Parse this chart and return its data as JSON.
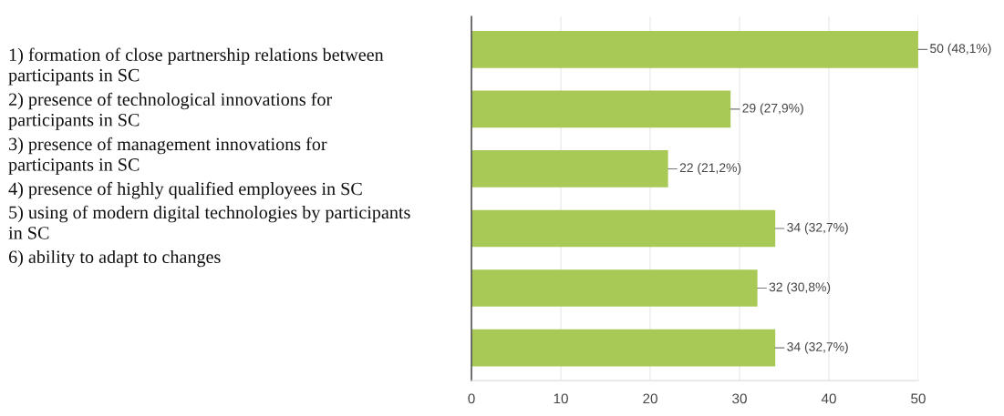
{
  "chart_data": {
    "type": "bar",
    "orientation": "horizontal",
    "categories": [
      null,
      null,
      null,
      null,
      null,
      null
    ],
    "values": [
      50,
      29,
      22,
      34,
      32,
      34
    ],
    "value_labels": [
      "50 (48,1%)",
      "29 (27,9%)",
      "22 (21,2%)",
      "34 (32,7%)",
      "32 (30,8%)",
      "34 (32,7%)"
    ],
    "color": "#a9c956",
    "xlim": [
      0,
      50
    ],
    "xticks": [
      0,
      10,
      20,
      30,
      40,
      50
    ],
    "grid": "x",
    "annotations": [
      "1) formation of close partnership relations between participants in SC",
      "2) presence of technological innovations for participants in SC",
      "3) presence of management innovations for participants in SC",
      "4) presence of highly qualified employees in SC",
      "5) using of modern digital technologies by participants in SC",
      "6) ability to adapt to changes"
    ]
  }
}
